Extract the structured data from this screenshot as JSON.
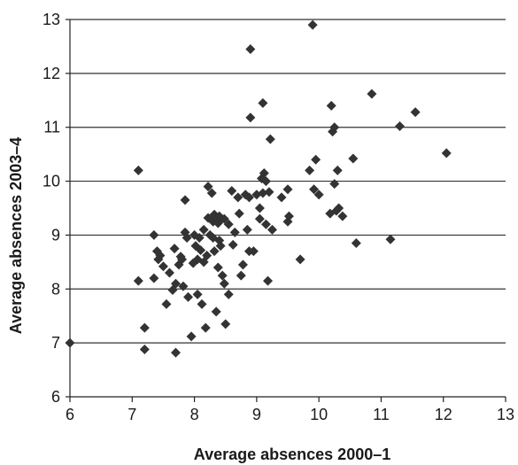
{
  "chart_data": {
    "type": "scatter",
    "title": "",
    "xlabel": "Average absences 2000–1",
    "ylabel": "Average absences 2003–4",
    "xlim": [
      6,
      13
    ],
    "ylim": [
      6,
      13
    ],
    "x_ticks": [
      "6",
      "7",
      "8",
      "9",
      "10",
      "11",
      "12",
      "13"
    ],
    "y_ticks": [
      "6",
      "7",
      "8",
      "9",
      "10",
      "11",
      "12",
      "13"
    ],
    "grid": "horizontal",
    "legend": "none",
    "marker": "diamond",
    "colors": {
      "marker": "#333333",
      "grid": "#333333",
      "axis": "#222222",
      "text": "#1a1a1a"
    },
    "points": [
      [
        6.0,
        7.0
      ],
      [
        7.1,
        10.2
      ],
      [
        7.1,
        8.15
      ],
      [
        7.2,
        7.28
      ],
      [
        7.2,
        6.88
      ],
      [
        7.35,
        9.0
      ],
      [
        7.35,
        8.2
      ],
      [
        7.4,
        8.7
      ],
      [
        7.42,
        8.55
      ],
      [
        7.45,
        8.62
      ],
      [
        7.5,
        8.42
      ],
      [
        7.55,
        7.72
      ],
      [
        7.6,
        8.3
      ],
      [
        7.65,
        7.98
      ],
      [
        7.68,
        8.75
      ],
      [
        7.7,
        8.1
      ],
      [
        7.7,
        6.82
      ],
      [
        7.75,
        8.45
      ],
      [
        7.78,
        8.6
      ],
      [
        7.8,
        8.55
      ],
      [
        7.82,
        8.05
      ],
      [
        7.85,
        9.05
      ],
      [
        7.85,
        9.65
      ],
      [
        7.88,
        8.95
      ],
      [
        7.9,
        7.85
      ],
      [
        7.95,
        7.12
      ],
      [
        7.98,
        8.48
      ],
      [
        8.0,
        9.0
      ],
      [
        8.02,
        8.8
      ],
      [
        8.05,
        8.55
      ],
      [
        8.05,
        7.9
      ],
      [
        8.08,
        8.95
      ],
      [
        8.1,
        8.72
      ],
      [
        8.12,
        7.72
      ],
      [
        8.15,
        9.1
      ],
      [
        8.15,
        8.5
      ],
      [
        8.18,
        7.28
      ],
      [
        8.2,
        8.62
      ],
      [
        8.22,
        9.32
      ],
      [
        8.22,
        9.9
      ],
      [
        8.25,
        9.0
      ],
      [
        8.28,
        9.78
      ],
      [
        8.3,
        9.25
      ],
      [
        8.3,
        8.95
      ],
      [
        8.32,
        9.38
      ],
      [
        8.32,
        8.7
      ],
      [
        8.35,
        7.58
      ],
      [
        8.35,
        9.3
      ],
      [
        8.38,
        9.22
      ],
      [
        8.38,
        8.4
      ],
      [
        8.4,
        9.35
      ],
      [
        8.4,
        8.9
      ],
      [
        8.42,
        9.28
      ],
      [
        8.42,
        8.8
      ],
      [
        8.45,
        8.25
      ],
      [
        8.48,
        8.1
      ],
      [
        8.48,
        9.3
      ],
      [
        8.5,
        7.35
      ],
      [
        8.55,
        7.9
      ],
      [
        8.55,
        9.2
      ],
      [
        8.6,
        9.82
      ],
      [
        8.62,
        8.82
      ],
      [
        8.65,
        9.05
      ],
      [
        8.7,
        9.7
      ],
      [
        8.72,
        9.4
      ],
      [
        8.75,
        8.25
      ],
      [
        8.78,
        8.45
      ],
      [
        8.82,
        9.75
      ],
      [
        8.85,
        9.1
      ],
      [
        8.88,
        9.7
      ],
      [
        8.88,
        8.7
      ],
      [
        8.9,
        11.18
      ],
      [
        8.9,
        12.45
      ],
      [
        8.95,
        8.7
      ],
      [
        9.0,
        9.75
      ],
      [
        9.05,
        9.3
      ],
      [
        9.05,
        9.5
      ],
      [
        9.08,
        10.05
      ],
      [
        9.1,
        11.45
      ],
      [
        9.1,
        9.78
      ],
      [
        9.12,
        10.15
      ],
      [
        9.15,
        10.0
      ],
      [
        9.15,
        9.2
      ],
      [
        9.18,
        8.15
      ],
      [
        9.2,
        9.8
      ],
      [
        9.22,
        10.78
      ],
      [
        9.25,
        9.1
      ],
      [
        9.4,
        9.7
      ],
      [
        9.5,
        9.85
      ],
      [
        9.5,
        9.25
      ],
      [
        9.52,
        9.35
      ],
      [
        9.7,
        8.55
      ],
      [
        9.85,
        10.2
      ],
      [
        9.9,
        12.9
      ],
      [
        9.92,
        9.85
      ],
      [
        9.95,
        10.4
      ],
      [
        10.0,
        9.75
      ],
      [
        10.18,
        9.4
      ],
      [
        10.2,
        11.4
      ],
      [
        10.22,
        10.92
      ],
      [
        10.25,
        11.0
      ],
      [
        10.25,
        9.95
      ],
      [
        10.28,
        9.45
      ],
      [
        10.3,
        10.2
      ],
      [
        10.32,
        9.5
      ],
      [
        10.38,
        9.35
      ],
      [
        10.55,
        10.42
      ],
      [
        10.6,
        8.85
      ],
      [
        10.85,
        11.62
      ],
      [
        11.15,
        8.92
      ],
      [
        11.3,
        11.02
      ],
      [
        11.55,
        11.28
      ],
      [
        12.05,
        10.52
      ]
    ]
  }
}
